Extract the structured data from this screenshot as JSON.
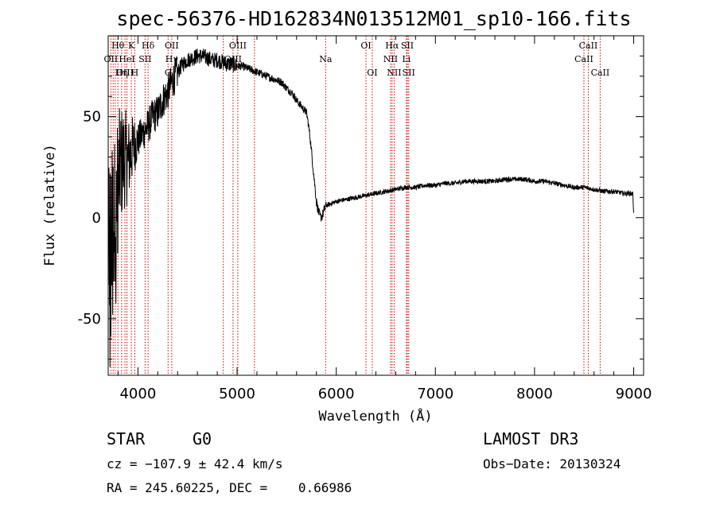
{
  "chart_data": {
    "type": "line",
    "title": "spec-56376-HD162834N013512M01_sp10-166.fits",
    "xlabel": "Wavelength (Å)",
    "ylabel": "Flux (relative)",
    "xlim": [
      3700,
      9100
    ],
    "ylim": [
      -78,
      90
    ],
    "xticks": [
      4000,
      5000,
      6000,
      7000,
      8000,
      9000
    ],
    "yticks": [
      -50,
      0,
      50
    ],
    "series": [
      {
        "name": "spectrum",
        "x": [
          3700,
          3740,
          3780,
          3820,
          3860,
          3900,
          3950,
          4000,
          4050,
          4100,
          4150,
          4200,
          4250,
          4300,
          4350,
          4400,
          4450,
          4500,
          4550,
          4600,
          4650,
          4700,
          4750,
          4800,
          4850,
          4900,
          4950,
          5000,
          5050,
          5100,
          5150,
          5200,
          5250,
          5300,
          5350,
          5400,
          5450,
          5500,
          5550,
          5600,
          5650,
          5700,
          5720,
          5740,
          5760,
          5780,
          5800,
          5820,
          5840,
          5860,
          5880,
          5900,
          5950,
          6000,
          6100,
          6200,
          6300,
          6400,
          6500,
          6600,
          6700,
          6800,
          6900,
          7000,
          7100,
          7200,
          7300,
          7400,
          7500,
          7600,
          7700,
          7800,
          7900,
          8000,
          8100,
          8200,
          8300,
          8400,
          8500,
          8600,
          8700,
          8800,
          8900,
          8990,
          9000
        ],
        "y": [
          -10,
          -5,
          8,
          25,
          30,
          28,
          35,
          38,
          42,
          45,
          50,
          52,
          58,
          62,
          68,
          72,
          76,
          78,
          79,
          80,
          80,
          79,
          78,
          78,
          77,
          76,
          76,
          75,
          75,
          74,
          73,
          72,
          71,
          70,
          69,
          68,
          67,
          64,
          62,
          58,
          55,
          52,
          46,
          38,
          28,
          18,
          8,
          3,
          0,
          1,
          4,
          6,
          7,
          8,
          9,
          10,
          11,
          12,
          13,
          14,
          15,
          15,
          16,
          16,
          17,
          17,
          18,
          18,
          18,
          18,
          19,
          19,
          19,
          18,
          18,
          17,
          16,
          15,
          15,
          14,
          13,
          13,
          12,
          12,
          3
        ]
      }
    ],
    "spectral_lines": [
      {
        "label": "Hθ",
        "wavelength": 3798,
        "row": 0
      },
      {
        "label": "K",
        "wavelength": 3934,
        "row": 0
      },
      {
        "label": "Hδ",
        "wavelength": 4102,
        "row": 0
      },
      {
        "label": "OII",
        "wavelength": 4341,
        "row": 0
      },
      {
        "label": "OIII",
        "wavelength": 5007,
        "row": 0
      },
      {
        "label": "OI",
        "wavelength": 6300,
        "row": 0
      },
      {
        "label": "Hα",
        "wavelength": 6563,
        "row": 0
      },
      {
        "label": "SII",
        "wavelength": 6717,
        "row": 0
      },
      {
        "label": "CaII",
        "wavelength": 8542,
        "row": 0
      },
      {
        "label": "OII",
        "wavelength": 3727,
        "row": 1
      },
      {
        "label": "HeI",
        "wavelength": 3889,
        "row": 1
      },
      {
        "label": "SII",
        "wavelength": 4072,
        "row": 1
      },
      {
        "label": "Hγ",
        "wavelength": 4341,
        "row": 1
      },
      {
        "label": "OIII",
        "wavelength": 4959,
        "row": 1
      },
      {
        "label": "Na",
        "wavelength": 5893,
        "row": 1
      },
      {
        "label": "NII",
        "wavelength": 6548,
        "row": 1
      },
      {
        "label": "Li",
        "wavelength": 6708,
        "row": 1
      },
      {
        "label": "CaII",
        "wavelength": 8498,
        "row": 1
      },
      {
        "label": "OIII",
        "wavelength": 3869,
        "row": 2
      },
      {
        "label": "Hη",
        "wavelength": 3835,
        "row": 2
      },
      {
        "label": "H",
        "wavelength": 3968,
        "row": 2
      },
      {
        "label": "G",
        "wavelength": 4304,
        "row": 2
      },
      {
        "label": "OI",
        "wavelength": 6363,
        "row": 2
      },
      {
        "label": "NII",
        "wavelength": 6584,
        "row": 2
      },
      {
        "label": "SII",
        "wavelength": 6731,
        "row": 2
      },
      {
        "label": "CaII",
        "wavelength": 8662,
        "row": 2
      }
    ],
    "extra_line_markers": [
      3750,
      3771,
      4861,
      5175
    ]
  },
  "info": {
    "class": "STAR",
    "subclass": "G0",
    "survey": "LAMOST DR3",
    "cz": "cz = −107.9 ± 42.4 km/s",
    "obs_date": "Obs−Date: 20130324",
    "radec": "RA = 245.60225, DEC =    0.66986"
  }
}
